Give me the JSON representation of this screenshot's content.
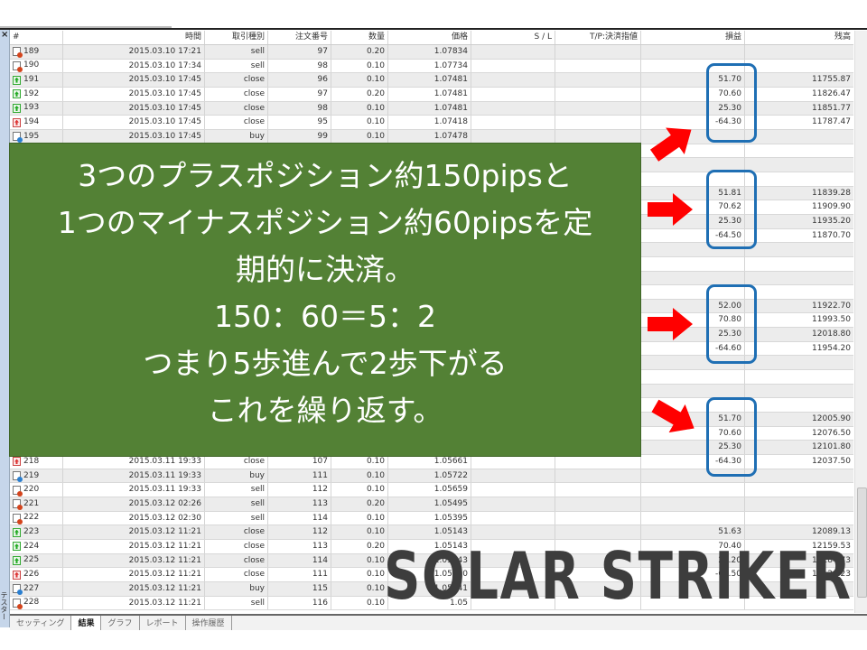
{
  "sidebar": {
    "close_glyph": "×",
    "vertical_label": "テスター"
  },
  "table": {
    "headers": [
      "#",
      "時間",
      "取引種別",
      "注文番号",
      "数量",
      "価格",
      "S / L",
      "T/P:決済指値",
      "損益",
      "残高"
    ],
    "rows": [
      {
        "icon": "sell",
        "n": "189",
        "time": "2015.03.10 17:21",
        "type": "sell",
        "order": "97",
        "qty": "0.20",
        "price": "1.07834",
        "pl": "",
        "bal": ""
      },
      {
        "icon": "sell",
        "n": "190",
        "time": "2015.03.10 17:34",
        "type": "sell",
        "order": "98",
        "qty": "0.10",
        "price": "1.07734",
        "pl": "",
        "bal": ""
      },
      {
        "icon": "close-profit",
        "n": "191",
        "time": "2015.03.10 17:45",
        "type": "close",
        "order": "96",
        "qty": "0.10",
        "price": "1.07481",
        "pl": "51.70",
        "bal": "11755.87"
      },
      {
        "icon": "close-profit",
        "n": "192",
        "time": "2015.03.10 17:45",
        "type": "close",
        "order": "97",
        "qty": "0.20",
        "price": "1.07481",
        "pl": "70.60",
        "bal": "11826.47"
      },
      {
        "icon": "close-profit",
        "n": "193",
        "time": "2015.03.10 17:45",
        "type": "close",
        "order": "98",
        "qty": "0.10",
        "price": "1.07481",
        "pl": "25.30",
        "bal": "11851.77"
      },
      {
        "icon": "close-loss",
        "n": "194",
        "time": "2015.03.10 17:45",
        "type": "close",
        "order": "95",
        "qty": "0.10",
        "price": "1.07418",
        "pl": "-64.30",
        "bal": "11787.47"
      },
      {
        "icon": "buy",
        "n": "195",
        "time": "2015.03.10 17:45",
        "type": "buy",
        "order": "99",
        "qty": "0.10",
        "price": "1.07478",
        "pl": "",
        "bal": ""
      },
      {
        "pl": "",
        "bal": ""
      },
      {
        "pl": "",
        "bal": ""
      },
      {
        "pl": "",
        "bal": ""
      },
      {
        "pl": "51.81",
        "bal": "11839.28"
      },
      {
        "pl": "70.62",
        "bal": "11909.90"
      },
      {
        "pl": "25.30",
        "bal": "11935.20"
      },
      {
        "pl": "-64.50",
        "bal": "11870.70"
      },
      {
        "pl": "",
        "bal": ""
      },
      {
        "pl": "",
        "bal": ""
      },
      {
        "pl": "",
        "bal": ""
      },
      {
        "pl": "",
        "bal": ""
      },
      {
        "pl": "52.00",
        "bal": "11922.70"
      },
      {
        "pl": "70.80",
        "bal": "11993.50"
      },
      {
        "pl": "25.30",
        "bal": "12018.80"
      },
      {
        "pl": "-64.60",
        "bal": "11954.20"
      },
      {
        "pl": "",
        "bal": ""
      },
      {
        "pl": "",
        "bal": ""
      },
      {
        "pl": "",
        "bal": ""
      },
      {
        "pl": "",
        "bal": ""
      },
      {
        "pl": "51.70",
        "bal": "12005.90"
      },
      {
        "pl": "70.60",
        "bal": "12076.50"
      },
      {
        "pl": "25.30",
        "bal": "12101.80"
      },
      {
        "icon": "close-loss",
        "n": "218",
        "time": "2015.03.11 19:33",
        "type": "close",
        "order": "107",
        "qty": "0.10",
        "price": "1.05661",
        "pl": "-64.30",
        "bal": "12037.50"
      },
      {
        "icon": "buy",
        "n": "219",
        "time": "2015.03.11 19:33",
        "type": "buy",
        "order": "111",
        "qty": "0.10",
        "price": "1.05722",
        "pl": "",
        "bal": ""
      },
      {
        "icon": "sell",
        "n": "220",
        "time": "2015.03.11 19:33",
        "type": "sell",
        "order": "112",
        "qty": "0.10",
        "price": "1.05659",
        "pl": "",
        "bal": ""
      },
      {
        "icon": "sell",
        "n": "221",
        "time": "2015.03.12 02:26",
        "type": "sell",
        "order": "113",
        "qty": "0.20",
        "price": "1.05495",
        "pl": "",
        "bal": ""
      },
      {
        "icon": "sell",
        "n": "222",
        "time": "2015.03.12 02:30",
        "type": "sell",
        "order": "114",
        "qty": "0.10",
        "price": "1.05395",
        "pl": "",
        "bal": ""
      },
      {
        "icon": "close-profit",
        "n": "223",
        "time": "2015.03.12 11:21",
        "type": "close",
        "order": "112",
        "qty": "0.10",
        "price": "1.05143",
        "pl": "51.63",
        "bal": "12089.13"
      },
      {
        "icon": "close-profit",
        "n": "224",
        "time": "2015.03.12 11:21",
        "type": "close",
        "order": "113",
        "qty": "0.20",
        "price": "1.05143",
        "pl": "70.40",
        "bal": "12159.53"
      },
      {
        "icon": "close-profit",
        "n": "225",
        "time": "2015.03.12 11:21",
        "type": "close",
        "order": "114",
        "qty": "0.10",
        "price": "1.05143",
        "pl": "25.20",
        "bal": "12184.73"
      },
      {
        "icon": "close-loss",
        "n": "226",
        "time": "2015.03.12 11:21",
        "type": "close",
        "order": "111",
        "qty": "0.10",
        "price": "1.05330",
        "pl": "-64.50",
        "bal": "12120.23"
      },
      {
        "icon": "buy",
        "n": "227",
        "time": "2015.03.12 11:21",
        "type": "buy",
        "order": "115",
        "qty": "0.10",
        "price": "1.05341",
        "pl": "",
        "bal": ""
      },
      {
        "icon": "sell",
        "n": "228",
        "time": "2015.03.12 11:21",
        "type": "sell",
        "order": "116",
        "qty": "0.10",
        "price": "1.05",
        "pl": "",
        "bal": ""
      }
    ]
  },
  "tabs": [
    "セッティング",
    "結果",
    "グラフ",
    "レポート",
    "操作履歴"
  ],
  "active_tab": "結果",
  "overlay": {
    "lines": [
      "3つのプラスポジション約150pipsと",
      "1つのマイナスポジション約60pipsを定",
      "期的に決済。",
      "150：60＝5：2",
      "つまり5歩進んで2歩下がる",
      "これを繰り返す。"
    ],
    "bg_color": "#538135",
    "highlight_color": "#1f6fb4",
    "arrow_color": "#ff0000"
  },
  "logo": "SOLAR STRIKER"
}
